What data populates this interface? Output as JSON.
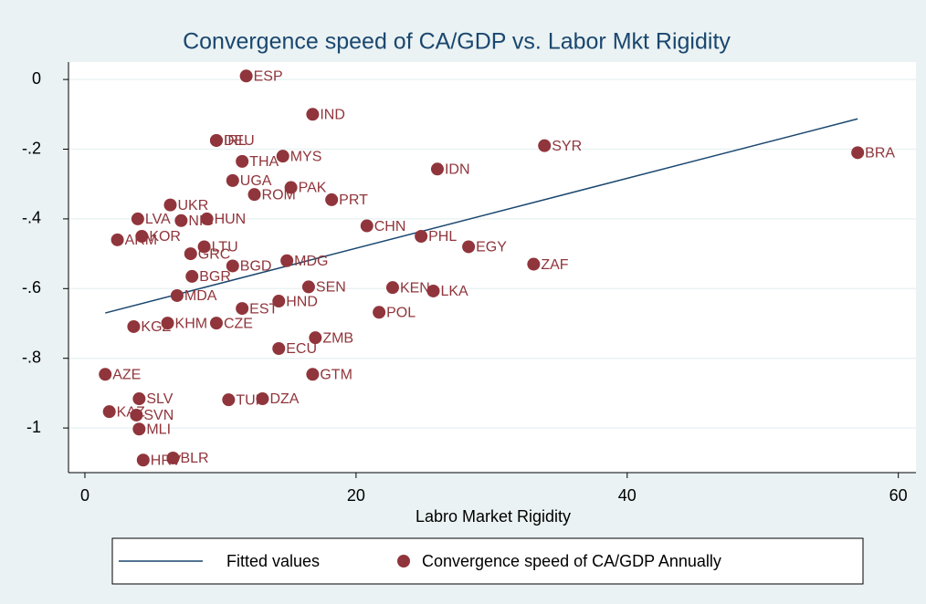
{
  "chart_data": {
    "type": "scatter",
    "title": "Convergence speed of CA/GDP vs. Labor Mkt Rigidity",
    "x_label": "Labro Market Rigidity",
    "xlim": [
      -1.21,
      61.3
    ],
    "ylim": [
      -1.128,
      0.05
    ],
    "xticks": [
      0,
      20,
      40,
      60
    ],
    "yticks": [
      0,
      {
        "value": -0.2,
        "label": "-.2"
      },
      {
        "value": -0.4,
        "label": "-.4"
      },
      {
        "value": -0.6,
        "label": "-.6"
      },
      {
        "value": -0.8,
        "label": "-.8"
      },
      {
        "value": -1,
        "label": "-1"
      }
    ],
    "grid": true,
    "legend": "bottom",
    "series": [
      {
        "name": "Fitted values",
        "type": "line",
        "color": "#1a476f",
        "x": [
          1.5,
          57.0
        ],
        "values": [
          -0.67,
          -0.113
        ]
      },
      {
        "name": "Convergence speed of CA/GDP Annually",
        "type": "scatter",
        "color": "#90353b",
        "labels": [
          "ESP",
          "IND",
          "IRL",
          "DEU",
          "MYS",
          "THA",
          "SYR",
          "BRA",
          "IDN",
          "UGA",
          "PAK",
          "ROM",
          "PRT",
          "UKR",
          "HUN",
          "LVA",
          "NIC",
          "CHN",
          "KOR",
          "ARM",
          "PHL",
          "EGY",
          "LTU",
          "GRC",
          "ZAF",
          "BGD",
          "MDG",
          "BGR",
          "SEN",
          "KEN",
          "LKA",
          "MDA",
          "HND",
          "EST",
          "POL",
          "KHM",
          "CZE",
          "KGZ",
          "ZMB",
          "ECU",
          "AZE",
          "GTM",
          "SLV",
          "TUR",
          "DZA",
          "KAZ",
          "SVN",
          "MLI",
          "HRV",
          "BLR"
        ],
        "x": [
          11.9,
          16.8,
          9.7,
          9.7,
          14.6,
          11.6,
          33.9,
          57.0,
          26.0,
          10.9,
          15.2,
          12.5,
          18.2,
          6.3,
          9.0,
          3.9,
          7.1,
          20.8,
          4.2,
          2.4,
          24.8,
          28.3,
          8.8,
          7.8,
          33.1,
          10.9,
          14.9,
          7.9,
          16.5,
          22.7,
          25.7,
          6.8,
          14.3,
          11.6,
          21.7,
          6.1,
          9.7,
          3.6,
          17.0,
          14.3,
          1.5,
          16.8,
          4.0,
          10.6,
          13.1,
          1.8,
          3.8,
          4.0,
          4.3,
          6.5
        ],
        "values": [
          0.01,
          -0.1,
          -0.175,
          -0.175,
          -0.22,
          -0.235,
          -0.19,
          -0.21,
          -0.257,
          -0.29,
          -0.31,
          -0.33,
          -0.345,
          -0.36,
          -0.4,
          -0.4,
          -0.405,
          -0.42,
          -0.45,
          -0.46,
          -0.45,
          -0.48,
          -0.48,
          -0.5,
          -0.53,
          -0.535,
          -0.52,
          -0.565,
          -0.595,
          -0.597,
          -0.607,
          -0.62,
          -0.636,
          -0.657,
          -0.668,
          -0.699,
          -0.699,
          -0.709,
          -0.741,
          -0.772,
          -0.846,
          -0.846,
          -0.916,
          -0.919,
          -0.916,
          -0.953,
          -0.963,
          -1.003,
          -1.092,
          -1.086
        ]
      }
    ]
  }
}
